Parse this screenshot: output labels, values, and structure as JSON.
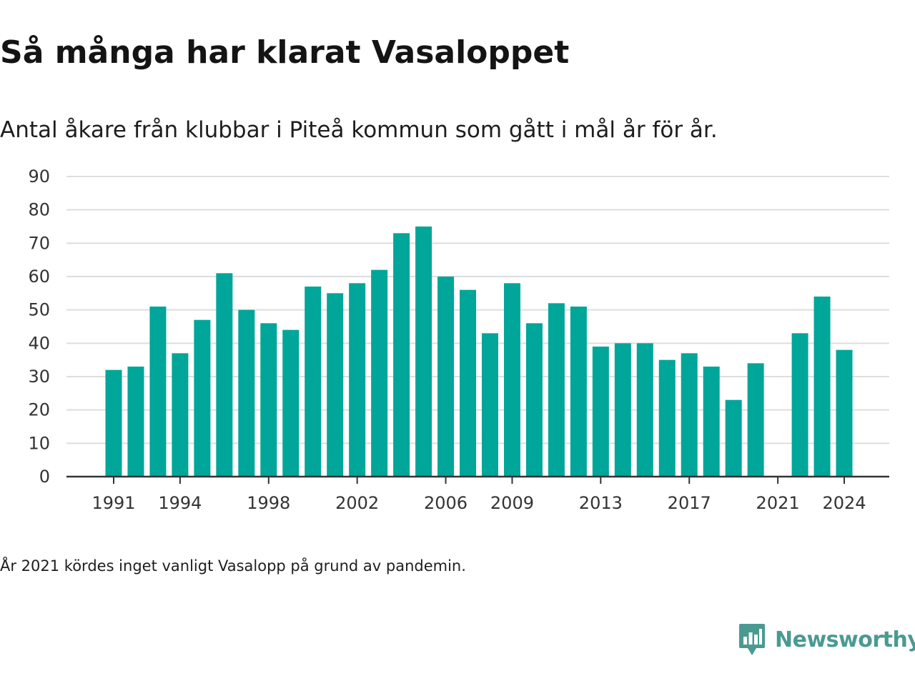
{
  "chart_data": {
    "type": "bar",
    "title": "Så många har klarat Vasaloppet",
    "subtitle": "Antal åkare från klubbar i Piteå kommun som gått i mål år för år.",
    "xlabel": "",
    "ylabel": "",
    "categories": [
      1991,
      1992,
      1993,
      1994,
      1995,
      1996,
      1997,
      1998,
      1999,
      2000,
      2001,
      2002,
      2003,
      2004,
      2005,
      2006,
      2007,
      2008,
      2009,
      2010,
      2011,
      2012,
      2013,
      2014,
      2015,
      2016,
      2017,
      2018,
      2019,
      2020,
      2021,
      2022,
      2023,
      2024
    ],
    "values": [
      32,
      33,
      51,
      37,
      47,
      61,
      50,
      46,
      44,
      57,
      55,
      58,
      62,
      73,
      75,
      60,
      56,
      43,
      58,
      46,
      52,
      51,
      39,
      40,
      40,
      35,
      37,
      33,
      23,
      34,
      null,
      43,
      54,
      38
    ],
    "x_tick_labels": [
      "1991",
      "1994",
      "1998",
      "2002",
      "2006",
      "2009",
      "2013",
      "2017",
      "2021",
      "2024"
    ],
    "y_ticks": [
      0,
      10,
      20,
      30,
      40,
      50,
      60,
      70,
      80,
      90
    ],
    "ylim": [
      0,
      90
    ],
    "grid": true,
    "bar_color": "#00a699",
    "note": "År 2021 kördes inget vanligt Vasalopp på grund av pandemin."
  },
  "brand": {
    "name": "Newsworthy",
    "color": "#4a9a92"
  }
}
